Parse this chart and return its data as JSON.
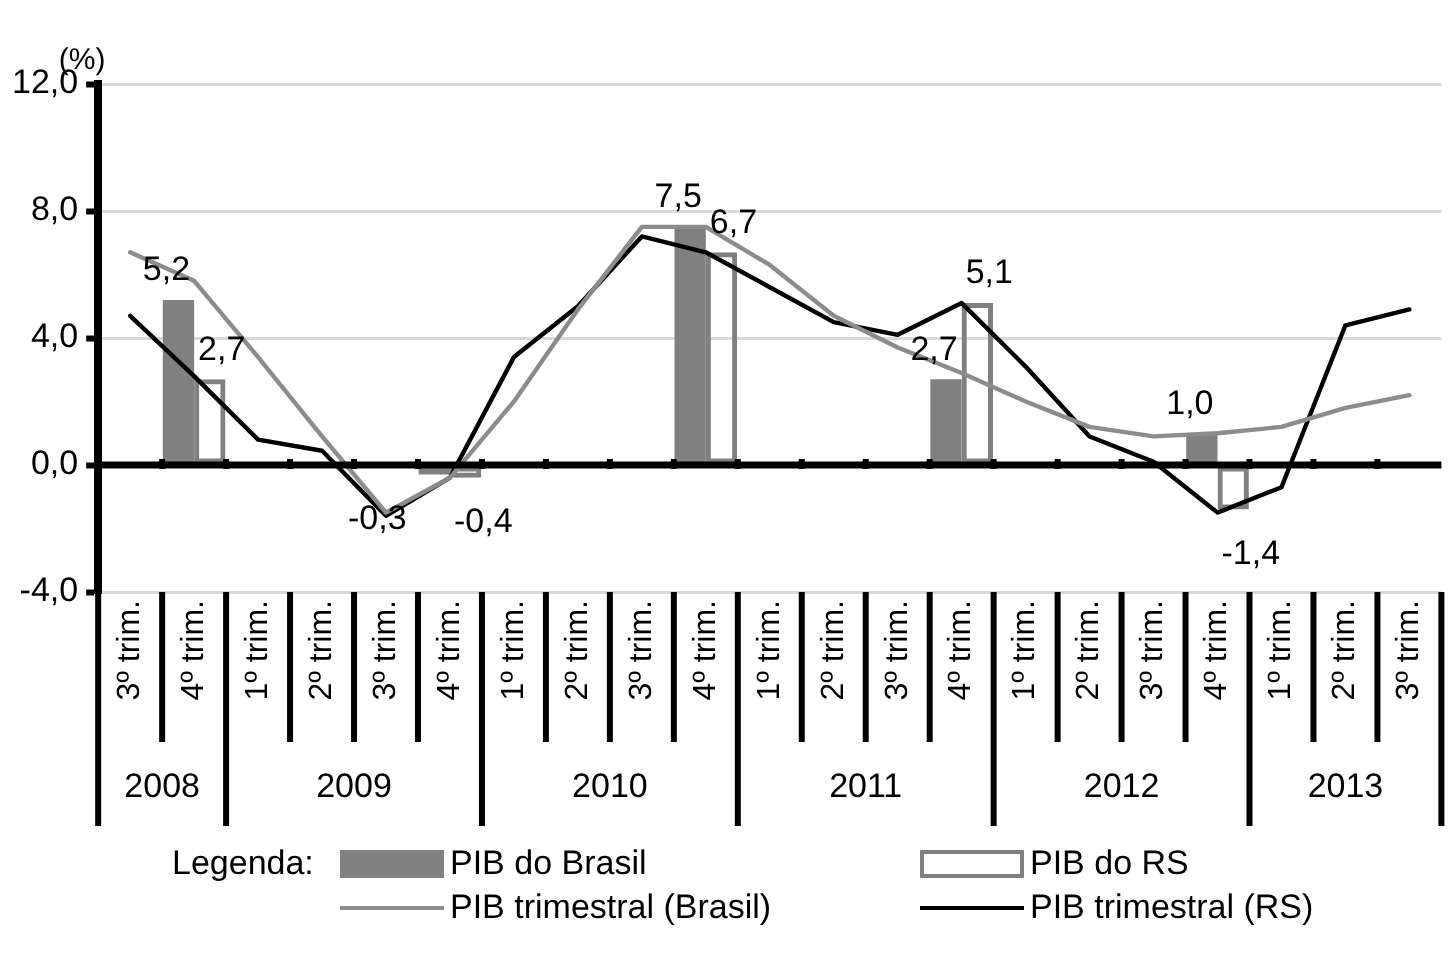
{
  "chart_data": {
    "type": "bar",
    "ylabel": "(%)",
    "legend_title": "Legenda:",
    "legend": "bottom",
    "grid": "y",
    "marker": "none",
    "line_style": "solid",
    "categories": [
      "3º trim.",
      "4º trim.",
      "1º trim.",
      "2º trim.",
      "3º trim.",
      "4º trim.",
      "1º trim.",
      "2º trim.",
      "3º trim.",
      "4º trim.",
      "1º trim.",
      "2º trim.",
      "3º trim.",
      "4º trim.",
      "1º trim.",
      "2º trim.",
      "3º trim.",
      "4º trim.",
      "1º trim.",
      "2º trim.",
      "3º trim."
    ],
    "annotations": [
      "2008",
      "2009",
      "2010",
      "2011",
      "2012",
      "2013"
    ],
    "ylim": [
      -4,
      12
    ],
    "yticks": [
      {
        "value": -4,
        "label": "-4,0"
      },
      {
        "value": 0,
        "label": "0,0"
      },
      {
        "value": 4,
        "label": "4,0"
      },
      {
        "value": 8,
        "label": "8,0"
      },
      {
        "value": 12,
        "label": "12,0"
      }
    ],
    "series": [
      {
        "name": "PIB do Brasil",
        "type": "bar",
        "color": "#808080",
        "values": [
          null,
          5.2,
          null,
          null,
          null,
          -0.3,
          null,
          null,
          null,
          7.5,
          null,
          null,
          null,
          2.7,
          null,
          null,
          null,
          1.0,
          null,
          null,
          null
        ],
        "value_labels": [
          null,
          "5,2",
          null,
          null,
          null,
          "-0,3",
          null,
          null,
          null,
          "7,5",
          null,
          null,
          null,
          "2,7",
          null,
          null,
          null,
          "1,0",
          null,
          null,
          null
        ]
      },
      {
        "name": "PIB do RS",
        "type": "bar",
        "color": "#808080",
        "values": [
          null,
          2.7,
          null,
          null,
          null,
          -0.4,
          null,
          null,
          null,
          6.7,
          null,
          null,
          null,
          5.1,
          null,
          null,
          null,
          -1.4,
          null,
          null,
          null
        ],
        "value_labels": [
          null,
          "2,7",
          null,
          null,
          null,
          "-0,4",
          null,
          null,
          null,
          "6,7",
          null,
          null,
          null,
          "5,1",
          null,
          null,
          null,
          "-1,4",
          null,
          null,
          null
        ]
      },
      {
        "name": "PIB trimestral (Brasil)",
        "type": "line",
        "color": "#8c8c8c",
        "values": [
          6.7,
          5.8,
          3.4,
          0.9,
          -1.5,
          -0.4,
          2.0,
          4.9,
          7.5,
          7.5,
          6.3,
          4.7,
          3.7,
          2.9,
          2.0,
          1.2,
          0.9,
          1.0,
          1.2,
          1.8,
          2.2
        ]
      },
      {
        "name": "PIB trimestral (RS)",
        "type": "line",
        "color": "#000000",
        "values": [
          4.7,
          2.8,
          0.8,
          0.45,
          -1.6,
          -0.4,
          3.4,
          5.0,
          7.2,
          6.7,
          5.6,
          4.5,
          4.1,
          5.1,
          3.1,
          0.9,
          0.1,
          -1.5,
          -0.7,
          4.4,
          4.9
        ]
      }
    ]
  }
}
